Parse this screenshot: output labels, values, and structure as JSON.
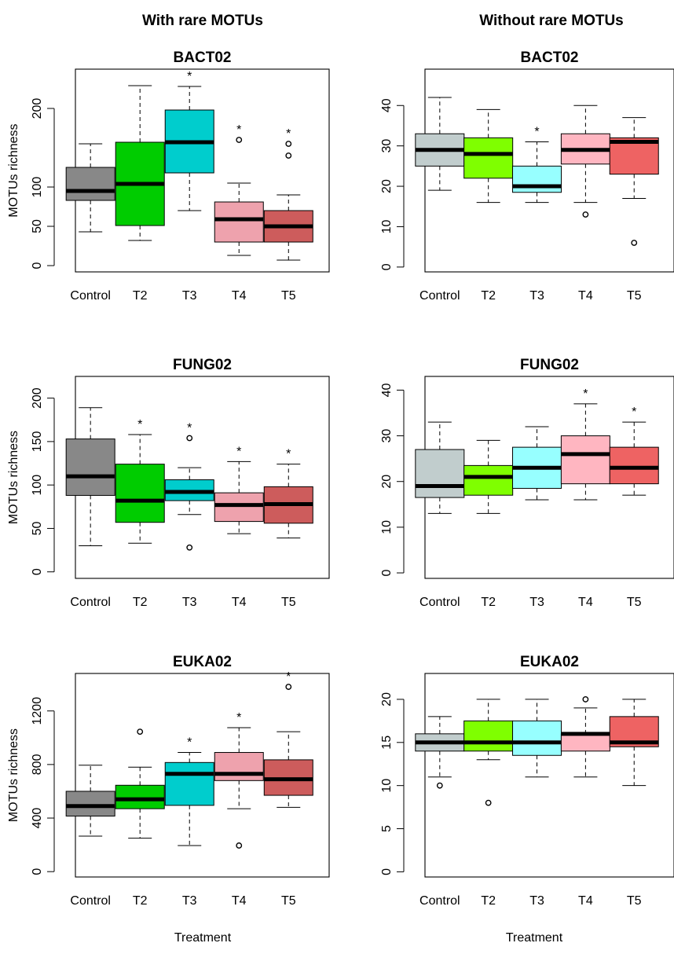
{
  "figure": {
    "column_titles": [
      "With rare MOTUs",
      "Without rare MOTUs"
    ],
    "x_axis_label": "Treatment",
    "y_axis_label": "MOTUs richness",
    "significance_marker": "*"
  },
  "chart_data": [
    {
      "type": "box",
      "title": "BACT02",
      "column": "With rare MOTUs",
      "ylabel": "MOTUs richness",
      "ylim": [
        -8,
        250
      ],
      "yticks": [
        0,
        50,
        100,
        200
      ],
      "categories": [
        "Control",
        "T2",
        "T3",
        "T4",
        "T5"
      ],
      "colors": [
        "#888888",
        "#00cc00",
        "#00cdcd",
        "#eea2ad",
        "#cd5c5c"
      ],
      "boxes": [
        {
          "category": "Control",
          "whisker_low": 43,
          "q1": 83,
          "median": 95,
          "q3": 125,
          "whisker_high": 155,
          "outliers": [],
          "significant": false
        },
        {
          "category": "T2",
          "whisker_low": 32,
          "q1": 51,
          "median": 104,
          "q3": 157,
          "whisker_high": 229,
          "outliers": [],
          "significant": false
        },
        {
          "category": "T3",
          "whisker_low": 70,
          "q1": 118,
          "median": 157,
          "q3": 198,
          "whisker_high": 228,
          "outliers": [],
          "significant": true
        },
        {
          "category": "T4",
          "whisker_low": 13,
          "q1": 30,
          "median": 59,
          "q3": 81,
          "whisker_high": 105,
          "outliers": [
            160
          ],
          "significant": true
        },
        {
          "category": "T5",
          "whisker_low": 7,
          "q1": 30,
          "median": 50,
          "q3": 70,
          "whisker_high": 90,
          "outliers": [
            140,
            155
          ],
          "significant": true
        }
      ]
    },
    {
      "type": "box",
      "title": "BACT02",
      "column": "Without rare MOTUs",
      "ylabel": "",
      "ylim": [
        -1.2,
        49
      ],
      "yticks": [
        0,
        10,
        20,
        30,
        40
      ],
      "categories": [
        "Control",
        "T2",
        "T3",
        "T4",
        "T5"
      ],
      "colors": [
        "#c1cdcd",
        "#7fff00",
        "#97ffff",
        "#ffb6c1",
        "#ee6363"
      ],
      "boxes": [
        {
          "category": "Control",
          "whisker_low": 19,
          "q1": 25,
          "median": 29,
          "q3": 33,
          "whisker_high": 42,
          "outliers": [],
          "significant": false
        },
        {
          "category": "T2",
          "whisker_low": 16,
          "q1": 22,
          "median": 28,
          "q3": 32,
          "whisker_high": 39,
          "outliers": [],
          "significant": false
        },
        {
          "category": "T3",
          "whisker_low": 16,
          "q1": 18.5,
          "median": 20,
          "q3": 25,
          "whisker_high": 31,
          "outliers": [],
          "significant": true
        },
        {
          "category": "T4",
          "whisker_low": 16,
          "q1": 25.5,
          "median": 29,
          "q3": 33,
          "whisker_high": 40,
          "outliers": [
            13
          ],
          "significant": false
        },
        {
          "category": "T5",
          "whisker_low": 17,
          "q1": 23,
          "median": 31,
          "q3": 32,
          "whisker_high": 37,
          "outliers": [
            6
          ],
          "significant": false
        }
      ]
    },
    {
      "type": "box",
      "title": "FUNG02",
      "column": "With rare MOTUs",
      "ylabel": "MOTUs richness",
      "ylim": [
        -7.5,
        225
      ],
      "yticks": [
        0,
        50,
        100,
        150,
        200
      ],
      "categories": [
        "Control",
        "T2",
        "T3",
        "T4",
        "T5"
      ],
      "colors": [
        "#888888",
        "#00cc00",
        "#00cdcd",
        "#eea2ad",
        "#cd5c5c"
      ],
      "boxes": [
        {
          "category": "Control",
          "whisker_low": 30,
          "q1": 88,
          "median": 110,
          "q3": 153,
          "whisker_high": 189,
          "outliers": [],
          "significant": false
        },
        {
          "category": "T2",
          "whisker_low": 33,
          "q1": 57,
          "median": 82,
          "q3": 124,
          "whisker_high": 158,
          "outliers": [],
          "significant": true
        },
        {
          "category": "T3",
          "whisker_low": 66,
          "q1": 82,
          "median": 92,
          "q3": 106,
          "whisker_high": 120,
          "outliers": [
            28,
            154
          ],
          "significant": true
        },
        {
          "category": "T4",
          "whisker_low": 44,
          "q1": 58,
          "median": 77,
          "q3": 91,
          "whisker_high": 127,
          "outliers": [],
          "significant": true
        },
        {
          "category": "T5",
          "whisker_low": 39,
          "q1": 56,
          "median": 78,
          "q3": 98,
          "whisker_high": 124,
          "outliers": [],
          "significant": true
        }
      ]
    },
    {
      "type": "box",
      "title": "FUNG02",
      "column": "Without rare MOTUs",
      "ylabel": "",
      "ylim": [
        -1.2,
        43
      ],
      "yticks": [
        0,
        10,
        20,
        30,
        40
      ],
      "categories": [
        "Control",
        "T2",
        "T3",
        "T4",
        "T5"
      ],
      "colors": [
        "#c1cdcd",
        "#7fff00",
        "#97ffff",
        "#ffb6c1",
        "#ee6363"
      ],
      "boxes": [
        {
          "category": "Control",
          "whisker_low": 13,
          "q1": 16.5,
          "median": 19,
          "q3": 27,
          "whisker_high": 33,
          "outliers": [],
          "significant": false
        },
        {
          "category": "T2",
          "whisker_low": 13,
          "q1": 17,
          "median": 21,
          "q3": 23.5,
          "whisker_high": 29,
          "outliers": [],
          "significant": false
        },
        {
          "category": "T3",
          "whisker_low": 16,
          "q1": 18.5,
          "median": 23,
          "q3": 27.5,
          "whisker_high": 32,
          "outliers": [],
          "significant": false
        },
        {
          "category": "T4",
          "whisker_low": 16,
          "q1": 19.5,
          "median": 26,
          "q3": 30,
          "whisker_high": 37,
          "outliers": [],
          "significant": true
        },
        {
          "category": "T5",
          "whisker_low": 17,
          "q1": 19.5,
          "median": 23,
          "q3": 27.5,
          "whisker_high": 33,
          "outliers": [],
          "significant": true
        }
      ]
    },
    {
      "type": "box",
      "title": "EUKA02",
      "column": "With rare MOTUs",
      "ylabel": "MOTUs richness",
      "ylim": [
        -40,
        1480
      ],
      "yticks": [
        0,
        400,
        800,
        1200
      ],
      "categories": [
        "Control",
        "T2",
        "T3",
        "T4",
        "T5"
      ],
      "colors": [
        "#888888",
        "#00cc00",
        "#00cdcd",
        "#eea2ad",
        "#cd5c5c"
      ],
      "boxes": [
        {
          "category": "Control",
          "whisker_low": 265,
          "q1": 415,
          "median": 490,
          "q3": 600,
          "whisker_high": 795,
          "outliers": [],
          "significant": false
        },
        {
          "category": "T2",
          "whisker_low": 250,
          "q1": 470,
          "median": 540,
          "q3": 645,
          "whisker_high": 780,
          "outliers": [
            1045
          ],
          "significant": false
        },
        {
          "category": "T3",
          "whisker_low": 195,
          "q1": 495,
          "median": 730,
          "q3": 815,
          "whisker_high": 890,
          "outliers": [],
          "significant": true
        },
        {
          "category": "T4",
          "whisker_low": 470,
          "q1": 680,
          "median": 730,
          "q3": 890,
          "whisker_high": 1075,
          "outliers": [
            195
          ],
          "significant": true
        },
        {
          "category": "T5",
          "whisker_low": 480,
          "q1": 570,
          "median": 690,
          "q3": 835,
          "whisker_high": 1045,
          "outliers": [
            1380
          ],
          "significant": true
        }
      ]
    },
    {
      "type": "box",
      "title": "EUKA02",
      "column": "Without rare MOTUs",
      "ylabel": "",
      "ylim": [
        -0.6,
        23
      ],
      "yticks": [
        0,
        5,
        10,
        15,
        20
      ],
      "categories": [
        "Control",
        "T2",
        "T3",
        "T4",
        "T5"
      ],
      "colors": [
        "#c1cdcd",
        "#7fff00",
        "#97ffff",
        "#ffb6c1",
        "#ee6363"
      ],
      "boxes": [
        {
          "category": "Control",
          "whisker_low": 11,
          "q1": 14,
          "median": 15,
          "q3": 16,
          "whisker_high": 18,
          "outliers": [
            10
          ],
          "significant": false
        },
        {
          "category": "T2",
          "whisker_low": 13,
          "q1": 14,
          "median": 15,
          "q3": 17.5,
          "whisker_high": 20,
          "outliers": [
            8
          ],
          "significant": false
        },
        {
          "category": "T3",
          "whisker_low": 11,
          "q1": 13.5,
          "median": 15,
          "q3": 17.5,
          "whisker_high": 20,
          "outliers": [],
          "significant": false
        },
        {
          "category": "T4",
          "whisker_low": 11,
          "q1": 14,
          "median": 16,
          "q3": 16,
          "whisker_high": 19,
          "outliers": [
            20
          ],
          "significant": false
        },
        {
          "category": "T5",
          "whisker_low": 10,
          "q1": 14.5,
          "median": 15,
          "q3": 18,
          "whisker_high": 20,
          "outliers": [],
          "significant": false
        }
      ]
    }
  ]
}
